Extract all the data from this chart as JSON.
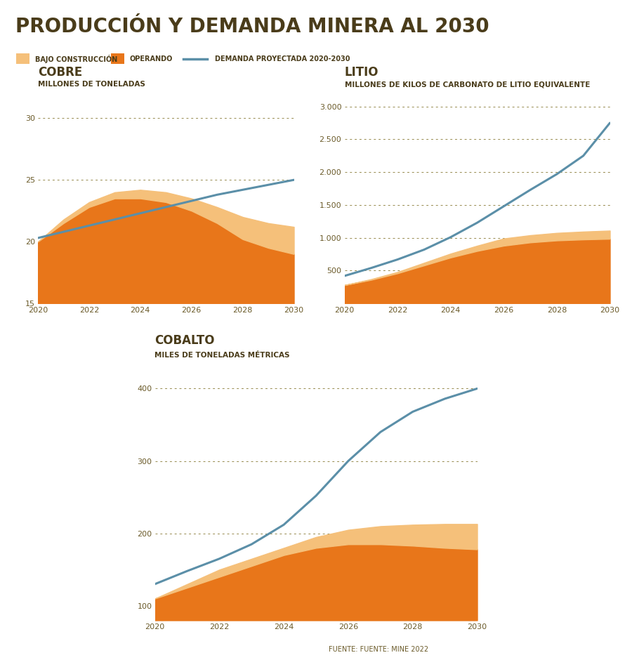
{
  "bg_color": "#FFFFFF",
  "title": "PRODUCCIÓN Y DEMANDA MINERA AL 2030",
  "title_color": "#4A3C1A",
  "title_fontsize": 20,
  "legend_labels": [
    "BAJO CONSTRUCCIÓN",
    "OPERANDO",
    "DEMANDA PROYECTADA 2020-2030"
  ],
  "color_bajo": "#F5C07A",
  "color_operando": "#E8761A",
  "color_demand": "#5B8FA8",
  "grid_color": "#8B7D3A",
  "tick_color": "#6B5B2A",
  "label_color": "#4A3C1A",
  "source_text": "FUENTE: FUENTE: MINE 2022",
  "cobre_title": "COBRE",
  "cobre_subtitle": "MILLONES DE TONELADAS",
  "cobre_years": [
    2020,
    2021,
    2022,
    2023,
    2024,
    2025,
    2026,
    2027,
    2028,
    2029,
    2030
  ],
  "cobre_operando": [
    20.0,
    21.5,
    22.8,
    23.5,
    23.5,
    23.2,
    22.5,
    21.5,
    20.2,
    19.5,
    19.0
  ],
  "cobre_bajo": [
    20.0,
    21.8,
    23.2,
    24.0,
    24.2,
    24.0,
    23.5,
    22.8,
    22.0,
    21.5,
    21.2
  ],
  "cobre_demand": [
    20.3,
    20.8,
    21.3,
    21.8,
    22.3,
    22.8,
    23.3,
    23.8,
    24.2,
    24.6,
    25.0
  ],
  "cobre_ylim": [
    15,
    32
  ],
  "cobre_yticks": [
    15,
    20,
    25,
    30
  ],
  "litio_title": "LITIO",
  "litio_subtitle": "MILLONES DE KILOS DE CARBONATO DE LITIO EQUIVALENTE",
  "litio_years": [
    2020,
    2021,
    2022,
    2023,
    2024,
    2025,
    2026,
    2027,
    2028,
    2029,
    2030
  ],
  "litio_operando": [
    280,
    360,
    460,
    580,
    700,
    800,
    880,
    930,
    960,
    975,
    985
  ],
  "litio_bajo": [
    280,
    370,
    480,
    620,
    760,
    880,
    990,
    1040,
    1075,
    1095,
    1110
  ],
  "litio_demand": [
    420,
    540,
    670,
    820,
    1010,
    1230,
    1480,
    1730,
    1970,
    2250,
    2750
  ],
  "litio_ylim": [
    0,
    3200
  ],
  "litio_yticks": [
    500,
    1000,
    1500,
    2000,
    2500,
    3000
  ],
  "cobalto_title": "COBALTO",
  "cobalto_subtitle": "MILES DE TONELADAS MÉTRICAS",
  "cobalto_years": [
    2020,
    2021,
    2022,
    2023,
    2024,
    2025,
    2026,
    2027,
    2028,
    2029,
    2030
  ],
  "cobalto_operando": [
    110,
    125,
    140,
    155,
    170,
    180,
    185,
    185,
    183,
    180,
    178
  ],
  "cobalto_bajo": [
    110,
    130,
    150,
    165,
    180,
    195,
    205,
    210,
    212,
    213,
    213
  ],
  "cobalto_demand": [
    130,
    148,
    165,
    185,
    212,
    252,
    300,
    340,
    368,
    386,
    400
  ],
  "cobalto_ylim": [
    80,
    430
  ],
  "cobalto_yticks": [
    100,
    200,
    300,
    400
  ]
}
